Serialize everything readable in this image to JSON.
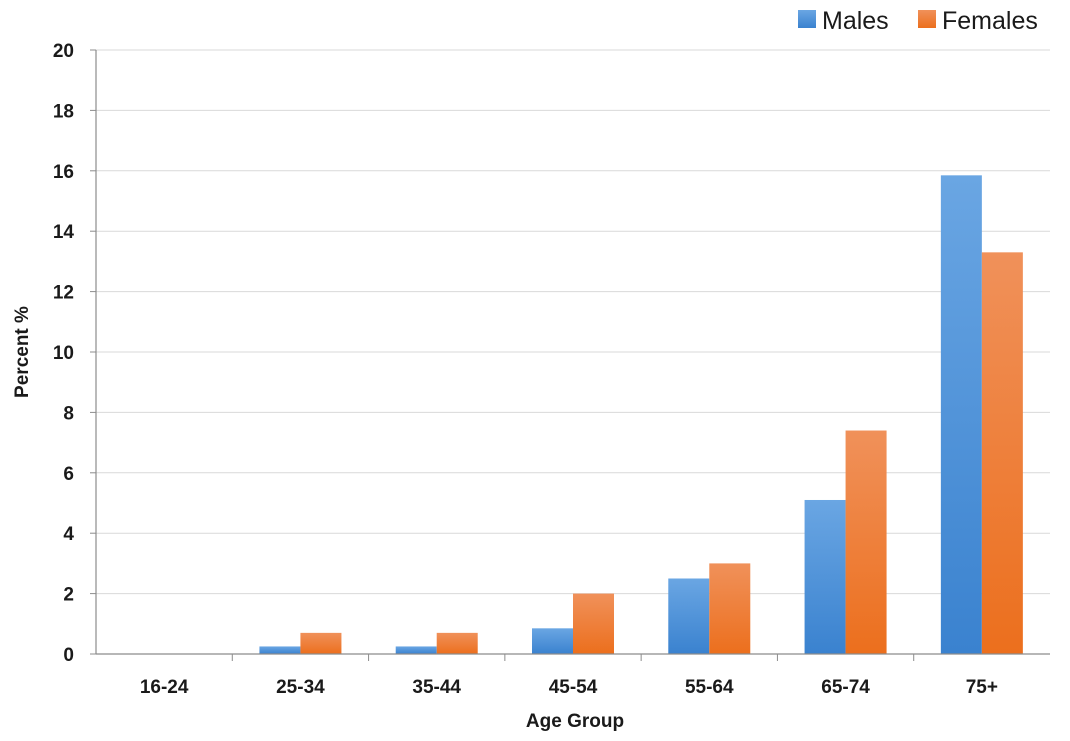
{
  "chart_data": {
    "type": "bar",
    "title": "",
    "xlabel": "Age Group",
    "ylabel": "Percent %",
    "categories": [
      "16-24",
      "25-34",
      "35-44",
      "45-54",
      "55-64",
      "65-74",
      "75+"
    ],
    "series": [
      {
        "name": "Males",
        "color": "#4a90d9",
        "values": [
          0,
          0.25,
          0.25,
          0.85,
          2.5,
          5.1,
          15.85
        ]
      },
      {
        "name": "Females",
        "color": "#f07f2e",
        "values": [
          0,
          0.7,
          0.7,
          2.0,
          3.0,
          7.4,
          13.3
        ]
      }
    ],
    "ylim": [
      0,
      20
    ],
    "yticks": [
      0,
      2,
      4,
      6,
      8,
      10,
      12,
      14,
      16,
      18,
      20
    ],
    "grid": true,
    "legend_position": "top-right"
  }
}
